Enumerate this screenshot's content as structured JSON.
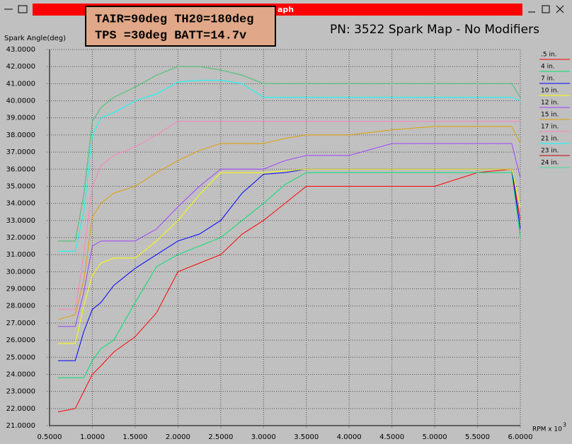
{
  "window_title": "aph",
  "info_lines": [
    "TAIR=90deg TH20=180deg",
    "TPS =30deg BATT=14.7v"
  ],
  "chart_data": {
    "type": "line",
    "title": "PN: 3522 Spark Map - No Modifiers",
    "y_label": "Spark Angle(deg)",
    "x_label": "RPM x 10",
    "x_label_exponent": "3",
    "grid": true,
    "legend_position": "right",
    "x": [
      0.6,
      0.8,
      0.9,
      1.0,
      1.1,
      1.25,
      1.5,
      1.75,
      2.0,
      2.25,
      2.5,
      2.75,
      3.0,
      3.25,
      3.5,
      4.0,
      4.5,
      5.0,
      5.5,
      5.9,
      6.0
    ],
    "xlim": [
      0.5,
      6.0
    ],
    "ylim": [
      21,
      43
    ],
    "xticks": [
      {
        "value": 0.5,
        "label": "0.5000"
      },
      {
        "value": 1,
        "label": "1.0000"
      },
      {
        "value": 1.5,
        "label": "1.5000"
      },
      {
        "value": 2,
        "label": "2.0000"
      },
      {
        "value": 2.5,
        "label": "2.5000"
      },
      {
        "value": 3,
        "label": "3.0000"
      },
      {
        "value": 3.5,
        "label": "3.5000"
      },
      {
        "value": 4,
        "label": "4.0000"
      },
      {
        "value": 4.5,
        "label": "4.5000"
      },
      {
        "value": 5,
        "label": "5.0000"
      },
      {
        "value": 5.5,
        "label": "5.5000"
      },
      {
        "value": 6,
        "label": "6.0000"
      }
    ],
    "yticks": [
      {
        "value": 21,
        "label": "21.0000"
      },
      {
        "value": 22,
        "label": "22.0000"
      },
      {
        "value": 23,
        "label": "23.0000"
      },
      {
        "value": 24,
        "label": "24.0000"
      },
      {
        "value": 25,
        "label": "25.0000"
      },
      {
        "value": 26,
        "label": "26.0000"
      },
      {
        "value": 27,
        "label": "27.0000"
      },
      {
        "value": 28,
        "label": "28.0000"
      },
      {
        "value": 29,
        "label": "29.0000"
      },
      {
        "value": 30,
        "label": "30.0000"
      },
      {
        "value": 31,
        "label": "31.0000"
      },
      {
        "value": 32,
        "label": "32.0000"
      },
      {
        "value": 33,
        "label": "33.0000"
      },
      {
        "value": 34,
        "label": "34.0000"
      },
      {
        "value": 35,
        "label": "35.0000"
      },
      {
        "value": 36,
        "label": "36.0000"
      },
      {
        "value": 37,
        "label": "37.0000"
      },
      {
        "value": 38,
        "label": "38.0000"
      },
      {
        "value": 39,
        "label": "39.0000"
      },
      {
        "value": 40,
        "label": "40.0000"
      },
      {
        "value": 41,
        "label": "41.0000"
      },
      {
        "value": 42,
        "label": "42.0000"
      },
      {
        "value": 43,
        "label": "43.0000"
      }
    ],
    "series": [
      {
        "name": ".5 in.",
        "color": "#ff0000",
        "values": [
          21.8,
          22.0,
          23.0,
          24.0,
          24.5,
          25.3,
          26.2,
          27.6,
          30.0,
          30.5,
          31.0,
          32.2,
          33.0,
          34.0,
          35.0,
          35.0,
          35.0,
          35.0,
          35.8,
          36.0,
          33.0
        ]
      },
      {
        "name": "4 in.",
        "color": "#00e070",
        "values": [
          23.8,
          23.8,
          23.8,
          24.8,
          25.5,
          26.0,
          28.2,
          30.3,
          31.0,
          31.5,
          32.0,
          33.0,
          34.0,
          35.1,
          35.8,
          35.8,
          35.8,
          35.8,
          35.8,
          35.8,
          32.0
        ]
      },
      {
        "name": "7 in.",
        "color": "#0000ff",
        "values": [
          24.8,
          24.8,
          26.5,
          27.8,
          28.2,
          29.2,
          30.2,
          31.0,
          31.8,
          32.2,
          33.0,
          34.6,
          35.7,
          35.8,
          36.0,
          36.0,
          36.0,
          36.0,
          36.0,
          36.0,
          32.5
        ]
      },
      {
        "name": "10 in.",
        "color": "#ffff00",
        "values": [
          25.8,
          25.8,
          28.0,
          29.8,
          30.5,
          30.8,
          30.8,
          31.8,
          33.0,
          34.5,
          35.8,
          35.8,
          35.8,
          35.9,
          36.0,
          36.0,
          36.0,
          36.0,
          36.0,
          36.0,
          33.8
        ]
      },
      {
        "name": "12 in.",
        "color": "#a040ff",
        "values": [
          26.8,
          26.8,
          28.8,
          31.5,
          31.8,
          31.8,
          31.8,
          32.5,
          33.8,
          35.0,
          36.0,
          36.0,
          36.0,
          36.5,
          36.8,
          36.8,
          37.5,
          37.5,
          37.5,
          37.5,
          35.5
        ]
      },
      {
        "name": "15 in.",
        "color": "#e0a000",
        "values": [
          27.2,
          27.5,
          29.5,
          33.2,
          34.0,
          34.6,
          35.0,
          35.8,
          36.5,
          37.1,
          37.5,
          37.5,
          37.5,
          37.8,
          38.0,
          38.0,
          38.3,
          38.5,
          38.5,
          38.5,
          37.5
        ]
      },
      {
        "name": "17 in.",
        "color": "#ff80c0",
        "values": [
          27.8,
          27.8,
          31.0,
          35.0,
          36.2,
          36.8,
          37.3,
          38.0,
          38.8,
          38.8,
          38.8,
          38.8,
          38.8,
          38.8,
          38.8,
          38.8,
          38.8,
          38.8,
          38.8,
          38.8,
          38.8
        ]
      },
      {
        "name": "21 in.",
        "color": "#00ffff",
        "values": [
          31.2,
          31.2,
          33.5,
          38.0,
          39.0,
          39.3,
          40.0,
          40.4,
          41.1,
          41.2,
          41.2,
          41.0,
          40.2,
          40.2,
          40.2,
          40.2,
          40.2,
          40.2,
          40.2,
          40.2,
          40.0
        ]
      },
      {
        "name": "23 in.",
        "color": "#c00000",
        "values": [
          31.8,
          31.8,
          34.5,
          38.8,
          39.6,
          40.2,
          40.8,
          41.5,
          42.0,
          42.0,
          41.8,
          41.5,
          41.0,
          41.0,
          41.0,
          41.0,
          41.0,
          41.0,
          41.0,
          41.0,
          40.2
        ]
      },
      {
        "name": "24 in.",
        "color": "#40e090",
        "values": [
          31.8,
          31.8,
          34.5,
          38.8,
          39.6,
          40.2,
          40.8,
          41.5,
          42.0,
          42.0,
          41.8,
          41.5,
          41.0,
          41.0,
          41.0,
          41.0,
          41.0,
          41.0,
          41.0,
          41.0,
          40.2
        ]
      }
    ]
  }
}
